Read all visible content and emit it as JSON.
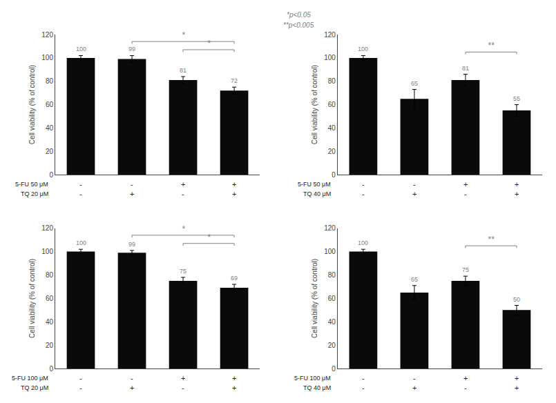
{
  "annotations": [
    "*p<0.05",
    "**p<0.005"
  ],
  "chart_data": [
    {
      "type": "bar",
      "categories": [
        null,
        null,
        null,
        null
      ],
      "values": [
        100,
        99,
        81,
        72
      ],
      "errors": [
        2,
        3,
        3,
        3
      ],
      "color": "#0a0a0a",
      "data_labels": true,
      "grid": false,
      "tick_labels": "y",
      "ylabel": "Cell viability (% of control)",
      "ylim": [
        0,
        120
      ],
      "yticks": [
        0,
        20,
        40,
        60,
        80,
        100,
        120
      ],
      "brackets": [
        {
          "from": 1,
          "to": 3,
          "y": 114,
          "label": "*"
        },
        {
          "from": 2,
          "to": 3,
          "y": 107,
          "label": "*"
        }
      ],
      "sign_rows": [
        {
          "label": "5-FU 50 μM",
          "signs": [
            "-",
            "-",
            "+",
            "+"
          ]
        },
        {
          "label": "TQ 20 μM",
          "signs": [
            "-",
            "+",
            "-",
            "+"
          ]
        }
      ]
    },
    {
      "type": "bar",
      "categories": [
        null,
        null,
        null,
        null
      ],
      "values": [
        100,
        65,
        81,
        55
      ],
      "errors": [
        2,
        8,
        5,
        5
      ],
      "color": "#0a0a0a",
      "data_labels": true,
      "grid": false,
      "tick_labels": "y",
      "ylabel": "Cell viability (% of control)",
      "ylim": [
        0,
        120
      ],
      "yticks": [
        0,
        20,
        40,
        60,
        80,
        100,
        120
      ],
      "brackets": [
        {
          "from": 2,
          "to": 3,
          "y": 105,
          "label": "**"
        }
      ],
      "sign_rows": [
        {
          "label": "5-FU 50 μM",
          "signs": [
            "-",
            "-",
            "+",
            "+"
          ]
        },
        {
          "label": "TQ 40 μM",
          "signs": [
            "-",
            "+",
            "-",
            "+"
          ]
        }
      ]
    },
    {
      "type": "bar",
      "categories": [
        null,
        null,
        null,
        null
      ],
      "values": [
        100,
        99,
        75,
        69
      ],
      "errors": [
        2,
        2,
        3,
        3
      ],
      "color": "#0a0a0a",
      "data_labels": true,
      "grid": false,
      "tick_labels": "y",
      "ylabel": "Cell viability (% of control)",
      "ylim": [
        0,
        120
      ],
      "yticks": [
        0,
        20,
        40,
        60,
        80,
        100,
        120
      ],
      "brackets": [
        {
          "from": 1,
          "to": 3,
          "y": 114,
          "label": "*"
        },
        {
          "from": 2,
          "to": 3,
          "y": 107,
          "label": "*"
        }
      ],
      "sign_rows": [
        {
          "label": "5-FU 100 μM",
          "signs": [
            "-",
            "-",
            "+",
            "+"
          ]
        },
        {
          "label": "TQ 20 μM",
          "signs": [
            "-",
            "+",
            "-",
            "+"
          ]
        }
      ]
    },
    {
      "type": "bar",
      "categories": [
        null,
        null,
        null,
        null
      ],
      "values": [
        100,
        65,
        75,
        50
      ],
      "errors": [
        2,
        6,
        4,
        4
      ],
      "color": "#0a0a0a",
      "data_labels": true,
      "grid": false,
      "tick_labels": "y",
      "ylabel": "Cell viability (% of control)",
      "ylim": [
        0,
        120
      ],
      "yticks": [
        0,
        20,
        40,
        60,
        80,
        100,
        120
      ],
      "brackets": [
        {
          "from": 2,
          "to": 3,
          "y": 105,
          "label": "**"
        }
      ],
      "sign_rows": [
        {
          "label": "5-FU 100 μM",
          "signs": [
            "-",
            "-",
            "+",
            "+"
          ]
        },
        {
          "label": "TQ 40 μM",
          "signs": [
            "-",
            "+",
            "-",
            "+"
          ]
        }
      ]
    }
  ]
}
